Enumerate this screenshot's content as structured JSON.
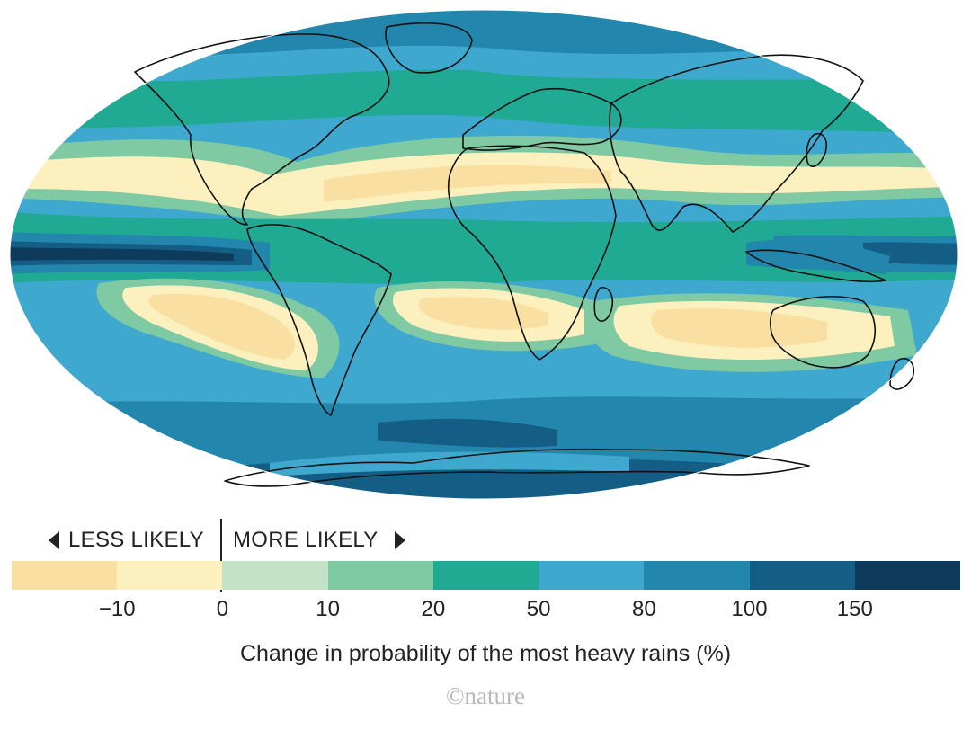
{
  "map": {
    "projection": "robinson",
    "level_colors": [
      "#f9dfa1",
      "#fdf0bf",
      "#c3e2c6",
      "#7fc9a3",
      "#20aa93",
      "#3fa8cf",
      "#2386ad",
      "#145e86",
      "#0e3a5b"
    ],
    "outline_color": "#111111"
  },
  "legend": {
    "less_likely": "LESS LIKELY",
    "more_likely": "MORE LIKELY",
    "ticks": [
      "−10",
      "0",
      "10",
      "20",
      "50",
      "80",
      "100",
      "150"
    ],
    "title": "Change in probability of the most heavy rains (%)"
  },
  "credit": "©nature"
}
